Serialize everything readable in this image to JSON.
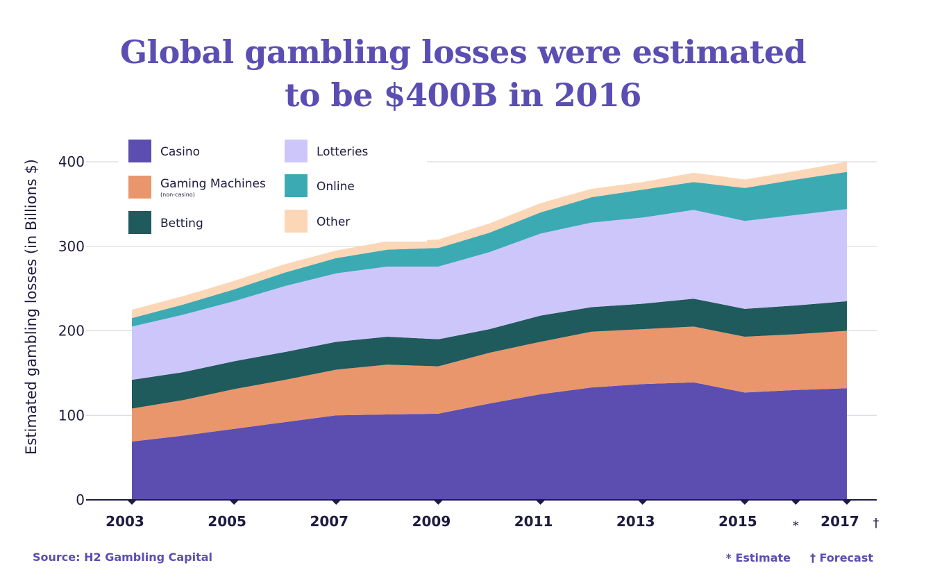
{
  "title_line1": "Global gambling losses were estimated",
  "title_line2": "to be $400B in 2016",
  "footer": {
    "source": "Source: H2 Gambling Capital",
    "estimate_note": "* Estimate",
    "forecast_note": "† Forecast"
  },
  "chart_data": {
    "type": "area",
    "stacked": true,
    "ylabel": "Estimated gambling losses (in Billions $)",
    "xlabel": "",
    "ylim": [
      0,
      400
    ],
    "yticks": [
      "0",
      "100",
      "200",
      "300",
      "400"
    ],
    "xlim": [
      2003,
      2017
    ],
    "xticks": [
      {
        "year": 2003,
        "label": "2003",
        "mark": ""
      },
      {
        "year": 2005,
        "label": "2005",
        "mark": ""
      },
      {
        "year": 2007,
        "label": "2007",
        "mark": ""
      },
      {
        "year": 2009,
        "label": "2009",
        "mark": ""
      },
      {
        "year": 2011,
        "label": "2011",
        "mark": ""
      },
      {
        "year": 2013,
        "label": "2013",
        "mark": ""
      },
      {
        "year": 2015,
        "label": "2015",
        "mark": ""
      },
      {
        "year": 2016,
        "label": "",
        "mark": "*"
      },
      {
        "year": 2017,
        "label": "2017",
        "mark": "†"
      }
    ],
    "grid": true,
    "legend_position": "top-left",
    "x": [
      2003,
      2004,
      2005,
      2006,
      2007,
      2008,
      2009,
      2010,
      2011,
      2012,
      2013,
      2014,
      2015,
      2016,
      2017
    ],
    "series": [
      {
        "name": "Casino",
        "sub": "",
        "color": "#5c4eb0",
        "values": [
          69,
          76,
          84,
          92,
          100,
          101,
          102,
          114,
          125,
          133,
          137,
          139,
          127,
          130,
          132
        ]
      },
      {
        "name": "Gaming Machines",
        "sub": "(non-casino)",
        "color": "#e9966d",
        "values": [
          39,
          42,
          47,
          50,
          54,
          59,
          56,
          60,
          62,
          66,
          65,
          66,
          66,
          66,
          68
        ]
      },
      {
        "name": "Betting",
        "sub": "",
        "color": "#1f5a5c",
        "values": [
          34,
          33,
          33,
          33,
          33,
          33,
          32,
          28,
          31,
          29,
          30,
          33,
          33,
          34,
          35
        ]
      },
      {
        "name": "Lotteries",
        "sub": "",
        "color": "#cdc6fb",
        "values": [
          63,
          68,
          71,
          78,
          81,
          83,
          86,
          91,
          97,
          100,
          102,
          105,
          104,
          107,
          109
        ]
      },
      {
        "name": "Online",
        "sub": "",
        "color": "#3caab3",
        "values": [
          10,
          12,
          14,
          16,
          18,
          20,
          22,
          23,
          25,
          30,
          33,
          33,
          39,
          42,
          44
        ]
      },
      {
        "name": "Other",
        "sub": "",
        "color": "#fbd7b8",
        "values": [
          10,
          10,
          10,
          10,
          9,
          10,
          10,
          11,
          11,
          10,
          9,
          11,
          10,
          10,
          12
        ]
      }
    ]
  }
}
